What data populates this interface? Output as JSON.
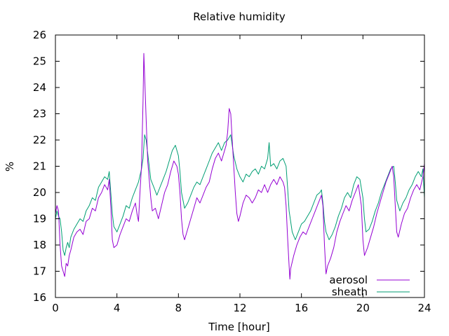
{
  "chart_data": {
    "type": "line",
    "title": "Relative humidity",
    "xlabel": "Time [hour]",
    "ylabel": "%",
    "xlim": [
      0,
      24
    ],
    "ylim": [
      16,
      26
    ],
    "xticks": [
      0,
      4,
      8,
      12,
      16,
      20,
      24
    ],
    "yticks": [
      16,
      17,
      18,
      19,
      20,
      21,
      22,
      23,
      24,
      25,
      26
    ],
    "grid": false,
    "legend_position": "bottom-right",
    "series": [
      {
        "name": "aerosol",
        "color": "#9400d3",
        "points": [
          [
            0.0,
            19.2
          ],
          [
            0.1,
            19.5
          ],
          [
            0.2,
            19.3
          ],
          [
            0.3,
            18.0
          ],
          [
            0.4,
            17.2
          ],
          [
            0.5,
            17.0
          ],
          [
            0.6,
            16.8
          ],
          [
            0.7,
            17.3
          ],
          [
            0.8,
            17.2
          ],
          [
            0.9,
            17.6
          ],
          [
            1.0,
            17.8
          ],
          [
            1.2,
            18.3
          ],
          [
            1.4,
            18.5
          ],
          [
            1.6,
            18.6
          ],
          [
            1.8,
            18.4
          ],
          [
            2.0,
            18.9
          ],
          [
            2.2,
            19.0
          ],
          [
            2.4,
            19.4
          ],
          [
            2.6,
            19.3
          ],
          [
            2.8,
            19.8
          ],
          [
            3.0,
            20.0
          ],
          [
            3.2,
            20.3
          ],
          [
            3.4,
            20.1
          ],
          [
            3.5,
            20.5
          ],
          [
            3.6,
            19.5
          ],
          [
            3.7,
            18.2
          ],
          [
            3.8,
            17.9
          ],
          [
            4.0,
            18.0
          ],
          [
            4.2,
            18.4
          ],
          [
            4.4,
            18.7
          ],
          [
            4.6,
            19.0
          ],
          [
            4.8,
            18.9
          ],
          [
            5.0,
            19.3
          ],
          [
            5.2,
            19.6
          ],
          [
            5.3,
            19.2
          ],
          [
            5.4,
            18.9
          ],
          [
            5.5,
            20.0
          ],
          [
            5.6,
            21.0
          ],
          [
            5.7,
            23.5
          ],
          [
            5.75,
            25.3
          ],
          [
            5.8,
            24.5
          ],
          [
            5.9,
            22.8
          ],
          [
            6.0,
            21.2
          ],
          [
            6.1,
            20.5
          ],
          [
            6.2,
            19.8
          ],
          [
            6.3,
            19.3
          ],
          [
            6.5,
            19.4
          ],
          [
            6.7,
            19.0
          ],
          [
            6.9,
            19.5
          ],
          [
            7.1,
            20.0
          ],
          [
            7.3,
            20.3
          ],
          [
            7.5,
            20.8
          ],
          [
            7.7,
            21.2
          ],
          [
            7.9,
            21.0
          ],
          [
            8.0,
            20.7
          ],
          [
            8.1,
            20.0
          ],
          [
            8.2,
            19.0
          ],
          [
            8.3,
            18.4
          ],
          [
            8.4,
            18.2
          ],
          [
            8.6,
            18.6
          ],
          [
            8.8,
            19.0
          ],
          [
            9.0,
            19.4
          ],
          [
            9.2,
            19.8
          ],
          [
            9.4,
            19.6
          ],
          [
            9.6,
            19.9
          ],
          [
            9.8,
            20.2
          ],
          [
            10.0,
            20.4
          ],
          [
            10.2,
            20.9
          ],
          [
            10.4,
            21.3
          ],
          [
            10.6,
            21.5
          ],
          [
            10.8,
            21.2
          ],
          [
            11.0,
            21.6
          ],
          [
            11.1,
            21.8
          ],
          [
            11.2,
            22.3
          ],
          [
            11.3,
            23.2
          ],
          [
            11.4,
            23.0
          ],
          [
            11.5,
            22.0
          ],
          [
            11.6,
            21.0
          ],
          [
            11.7,
            20.0
          ],
          [
            11.8,
            19.2
          ],
          [
            11.9,
            18.9
          ],
          [
            12.0,
            19.1
          ],
          [
            12.2,
            19.6
          ],
          [
            12.4,
            19.9
          ],
          [
            12.6,
            19.8
          ],
          [
            12.8,
            19.6
          ],
          [
            13.0,
            19.8
          ],
          [
            13.2,
            20.1
          ],
          [
            13.4,
            20.0
          ],
          [
            13.6,
            20.3
          ],
          [
            13.8,
            20.0
          ],
          [
            14.0,
            20.3
          ],
          [
            14.2,
            20.5
          ],
          [
            14.4,
            20.3
          ],
          [
            14.6,
            20.6
          ],
          [
            14.8,
            20.4
          ],
          [
            14.9,
            20.2
          ],
          [
            15.0,
            19.5
          ],
          [
            15.1,
            18.3
          ],
          [
            15.2,
            17.2
          ],
          [
            15.25,
            16.7
          ],
          [
            15.3,
            17.1
          ],
          [
            15.5,
            17.6
          ],
          [
            15.7,
            18.0
          ],
          [
            15.9,
            18.3
          ],
          [
            16.1,
            18.5
          ],
          [
            16.3,
            18.4
          ],
          [
            16.5,
            18.7
          ],
          [
            16.7,
            19.0
          ],
          [
            16.9,
            19.3
          ],
          [
            17.1,
            19.6
          ],
          [
            17.3,
            19.9
          ],
          [
            17.4,
            19.5
          ],
          [
            17.5,
            18.0
          ],
          [
            17.6,
            16.9
          ],
          [
            17.7,
            17.2
          ],
          [
            17.9,
            17.5
          ],
          [
            18.1,
            17.9
          ],
          [
            18.3,
            18.5
          ],
          [
            18.5,
            18.9
          ],
          [
            18.7,
            19.2
          ],
          [
            18.9,
            19.5
          ],
          [
            19.1,
            19.3
          ],
          [
            19.3,
            19.7
          ],
          [
            19.5,
            20.0
          ],
          [
            19.7,
            20.3
          ],
          [
            19.9,
            19.5
          ],
          [
            20.0,
            18.2
          ],
          [
            20.1,
            17.6
          ],
          [
            20.3,
            17.9
          ],
          [
            20.5,
            18.3
          ],
          [
            20.7,
            18.7
          ],
          [
            20.9,
            19.2
          ],
          [
            21.1,
            19.6
          ],
          [
            21.3,
            20.0
          ],
          [
            21.5,
            20.4
          ],
          [
            21.7,
            20.7
          ],
          [
            21.9,
            21.0
          ],
          [
            22.0,
            20.6
          ],
          [
            22.1,
            19.5
          ],
          [
            22.2,
            18.5
          ],
          [
            22.3,
            18.3
          ],
          [
            22.5,
            18.8
          ],
          [
            22.7,
            19.2
          ],
          [
            22.9,
            19.4
          ],
          [
            23.1,
            19.8
          ],
          [
            23.3,
            20.1
          ],
          [
            23.5,
            20.3
          ],
          [
            23.7,
            20.1
          ],
          [
            23.9,
            20.6
          ],
          [
            24.0,
            21.1
          ]
        ]
      },
      {
        "name": "sheath",
        "color": "#009e73",
        "points": [
          [
            0.0,
            19.0
          ],
          [
            0.1,
            19.3
          ],
          [
            0.2,
            19.1
          ],
          [
            0.3,
            19.0
          ],
          [
            0.4,
            18.5
          ],
          [
            0.5,
            17.8
          ],
          [
            0.6,
            17.6
          ],
          [
            0.7,
            17.9
          ],
          [
            0.8,
            18.1
          ],
          [
            0.9,
            17.9
          ],
          [
            1.0,
            18.3
          ],
          [
            1.2,
            18.6
          ],
          [
            1.4,
            18.8
          ],
          [
            1.6,
            19.0
          ],
          [
            1.8,
            18.9
          ],
          [
            2.0,
            19.3
          ],
          [
            2.2,
            19.5
          ],
          [
            2.4,
            19.8
          ],
          [
            2.6,
            19.7
          ],
          [
            2.8,
            20.2
          ],
          [
            3.0,
            20.4
          ],
          [
            3.2,
            20.6
          ],
          [
            3.4,
            20.5
          ],
          [
            3.5,
            20.8
          ],
          [
            3.6,
            20.0
          ],
          [
            3.7,
            19.2
          ],
          [
            3.8,
            18.7
          ],
          [
            4.0,
            18.5
          ],
          [
            4.2,
            18.8
          ],
          [
            4.4,
            19.1
          ],
          [
            4.6,
            19.5
          ],
          [
            4.8,
            19.4
          ],
          [
            5.0,
            19.8
          ],
          [
            5.2,
            20.1
          ],
          [
            5.4,
            20.4
          ],
          [
            5.6,
            20.9
          ],
          [
            5.7,
            21.3
          ],
          [
            5.8,
            22.2
          ],
          [
            5.9,
            22.0
          ],
          [
            6.0,
            21.5
          ],
          [
            6.1,
            21.0
          ],
          [
            6.2,
            20.5
          ],
          [
            6.4,
            20.2
          ],
          [
            6.6,
            19.9
          ],
          [
            6.8,
            20.2
          ],
          [
            7.0,
            20.5
          ],
          [
            7.2,
            20.8
          ],
          [
            7.4,
            21.2
          ],
          [
            7.6,
            21.6
          ],
          [
            7.8,
            21.8
          ],
          [
            8.0,
            21.4
          ],
          [
            8.1,
            20.8
          ],
          [
            8.2,
            20.0
          ],
          [
            8.4,
            19.4
          ],
          [
            8.6,
            19.6
          ],
          [
            8.8,
            19.9
          ],
          [
            9.0,
            20.2
          ],
          [
            9.2,
            20.4
          ],
          [
            9.4,
            20.3
          ],
          [
            9.6,
            20.6
          ],
          [
            9.8,
            20.9
          ],
          [
            10.0,
            21.2
          ],
          [
            10.2,
            21.5
          ],
          [
            10.4,
            21.7
          ],
          [
            10.6,
            21.9
          ],
          [
            10.8,
            21.6
          ],
          [
            11.0,
            21.9
          ],
          [
            11.2,
            22.0
          ],
          [
            11.4,
            22.2
          ],
          [
            11.5,
            21.8
          ],
          [
            11.6,
            21.4
          ],
          [
            11.8,
            20.9
          ],
          [
            12.0,
            20.6
          ],
          [
            12.2,
            20.4
          ],
          [
            12.4,
            20.7
          ],
          [
            12.6,
            20.6
          ],
          [
            12.8,
            20.8
          ],
          [
            13.0,
            20.9
          ],
          [
            13.2,
            20.7
          ],
          [
            13.4,
            21.0
          ],
          [
            13.6,
            20.9
          ],
          [
            13.8,
            21.3
          ],
          [
            13.9,
            21.9
          ],
          [
            14.0,
            21.0
          ],
          [
            14.2,
            21.1
          ],
          [
            14.4,
            20.9
          ],
          [
            14.6,
            21.2
          ],
          [
            14.8,
            21.3
          ],
          [
            15.0,
            21.0
          ],
          [
            15.1,
            20.2
          ],
          [
            15.2,
            19.3
          ],
          [
            15.4,
            18.5
          ],
          [
            15.6,
            18.2
          ],
          [
            15.8,
            18.5
          ],
          [
            16.0,
            18.8
          ],
          [
            16.2,
            18.9
          ],
          [
            16.4,
            19.1
          ],
          [
            16.6,
            19.3
          ],
          [
            16.8,
            19.6
          ],
          [
            17.0,
            19.9
          ],
          [
            17.2,
            20.0
          ],
          [
            17.3,
            20.1
          ],
          [
            17.4,
            19.6
          ],
          [
            17.5,
            18.9
          ],
          [
            17.6,
            18.5
          ],
          [
            17.8,
            18.2
          ],
          [
            18.0,
            18.4
          ],
          [
            18.2,
            18.7
          ],
          [
            18.4,
            19.1
          ],
          [
            18.6,
            19.4
          ],
          [
            18.8,
            19.8
          ],
          [
            19.0,
            20.0
          ],
          [
            19.2,
            19.8
          ],
          [
            19.4,
            20.3
          ],
          [
            19.6,
            20.6
          ],
          [
            19.8,
            20.5
          ],
          [
            20.0,
            19.8
          ],
          [
            20.1,
            19.0
          ],
          [
            20.2,
            18.5
          ],
          [
            20.4,
            18.6
          ],
          [
            20.6,
            18.9
          ],
          [
            20.8,
            19.3
          ],
          [
            21.0,
            19.6
          ],
          [
            21.2,
            20.0
          ],
          [
            21.4,
            20.3
          ],
          [
            21.6,
            20.6
          ],
          [
            21.8,
            20.9
          ],
          [
            22.0,
            21.0
          ],
          [
            22.1,
            20.4
          ],
          [
            22.2,
            19.7
          ],
          [
            22.4,
            19.3
          ],
          [
            22.6,
            19.6
          ],
          [
            22.8,
            19.8
          ],
          [
            23.0,
            20.1
          ],
          [
            23.2,
            20.3
          ],
          [
            23.4,
            20.6
          ],
          [
            23.6,
            20.8
          ],
          [
            23.8,
            20.6
          ],
          [
            23.9,
            20.9
          ],
          [
            24.0,
            19.8
          ]
        ]
      }
    ]
  }
}
